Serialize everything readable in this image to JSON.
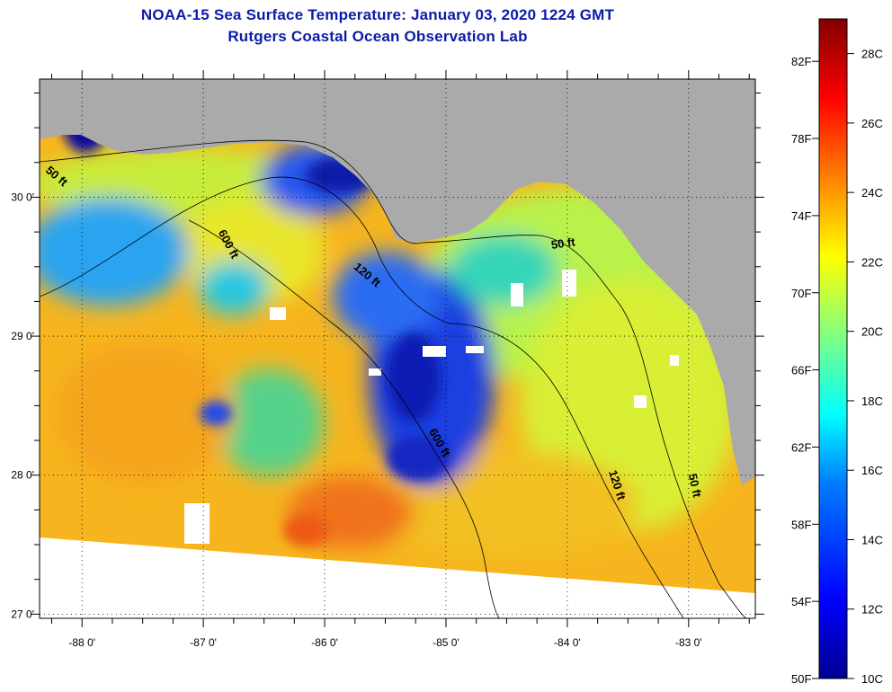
{
  "title": {
    "line1": "NOAA-15 Sea Surface Temperature:  January 03, 2020 1224 GMT",
    "line2": "Rutgers Coastal Ocean Observation Lab"
  },
  "colors": {
    "land": "#aaaaaa",
    "no_data": "#ffffff",
    "frame": "#000000",
    "title_text": "#0b1ca8"
  },
  "map": {
    "lon_range": [
      -88.35,
      -82.45
    ],
    "lat_range": [
      26.97,
      30.85
    ],
    "lon_ticks": [
      {
        "value": -88,
        "label": "-88 0'"
      },
      {
        "value": -87,
        "label": "-87 0'"
      },
      {
        "value": -86,
        "label": "-86 0'"
      },
      {
        "value": -85,
        "label": "-85 0'"
      },
      {
        "value": -84,
        "label": "-84 0'"
      },
      {
        "value": -83,
        "label": "-83 0'"
      }
    ],
    "lat_ticks": [
      {
        "value": 30,
        "label": "30 0'"
      },
      {
        "value": 29,
        "label": "29 0'"
      },
      {
        "value": 28,
        "label": "28 0'"
      },
      {
        "value": 27,
        "label": "27 0'"
      }
    ],
    "contour_labels": [
      {
        "text": "50 ft",
        "lon": -88.23,
        "lat": 30.13,
        "rotation": 40
      },
      {
        "text": "600 ft",
        "lon": -86.82,
        "lat": 29.65,
        "rotation": 62
      },
      {
        "text": "120 ft",
        "lon": -85.67,
        "lat": 29.42,
        "rotation": 40
      },
      {
        "text": "50 ft",
        "lon": -84.03,
        "lat": 29.64,
        "rotation": -8
      },
      {
        "text": "600 ft",
        "lon": -85.08,
        "lat": 28.22,
        "rotation": 60
      },
      {
        "text": "120 ft",
        "lon": -83.62,
        "lat": 27.92,
        "rotation": 72
      },
      {
        "text": "50 ft",
        "lon": -82.98,
        "lat": 27.92,
        "rotation": 78
      }
    ],
    "features": [
      {
        "name": "warm-core-sst",
        "temp_c": 22.5
      },
      {
        "name": "shelf-cold-water",
        "temp_c": 14.0
      },
      {
        "name": "florida-shelf-sst",
        "temp_c": 19.5
      },
      {
        "name": "warm-eddy",
        "temp_c": 24.5
      }
    ]
  },
  "colorbar": {
    "temp_range_c": [
      10,
      29
    ],
    "celsius_labels": [
      {
        "value": 10,
        "label": "10C"
      },
      {
        "value": 12,
        "label": "12C"
      },
      {
        "value": 14,
        "label": "14C"
      },
      {
        "value": 16,
        "label": "16C"
      },
      {
        "value": 18,
        "label": "18C"
      },
      {
        "value": 20,
        "label": "20C"
      },
      {
        "value": 22,
        "label": "22C"
      },
      {
        "value": 24,
        "label": "24C"
      },
      {
        "value": 26,
        "label": "26C"
      },
      {
        "value": 28,
        "label": "28C"
      }
    ],
    "fahrenheit_labels": [
      {
        "value": 50,
        "label": "50F"
      },
      {
        "value": 54,
        "label": "54F"
      },
      {
        "value": 58,
        "label": "58F"
      },
      {
        "value": 62,
        "label": "62F"
      },
      {
        "value": 66,
        "label": "66F"
      },
      {
        "value": 70,
        "label": "70F"
      },
      {
        "value": 74,
        "label": "74F"
      },
      {
        "value": 78,
        "label": "78F"
      },
      {
        "value": 82,
        "label": "82F"
      }
    ],
    "stops": [
      {
        "offset": 0.0,
        "color": "#00008f"
      },
      {
        "offset": 0.12,
        "color": "#0000ff"
      },
      {
        "offset": 0.3,
        "color": "#0080ff"
      },
      {
        "offset": 0.4,
        "color": "#00ffff"
      },
      {
        "offset": 0.52,
        "color": "#80ff80"
      },
      {
        "offset": 0.64,
        "color": "#ffff00"
      },
      {
        "offset": 0.76,
        "color": "#ff8000"
      },
      {
        "offset": 0.88,
        "color": "#ff0000"
      },
      {
        "offset": 1.0,
        "color": "#800000"
      }
    ]
  }
}
